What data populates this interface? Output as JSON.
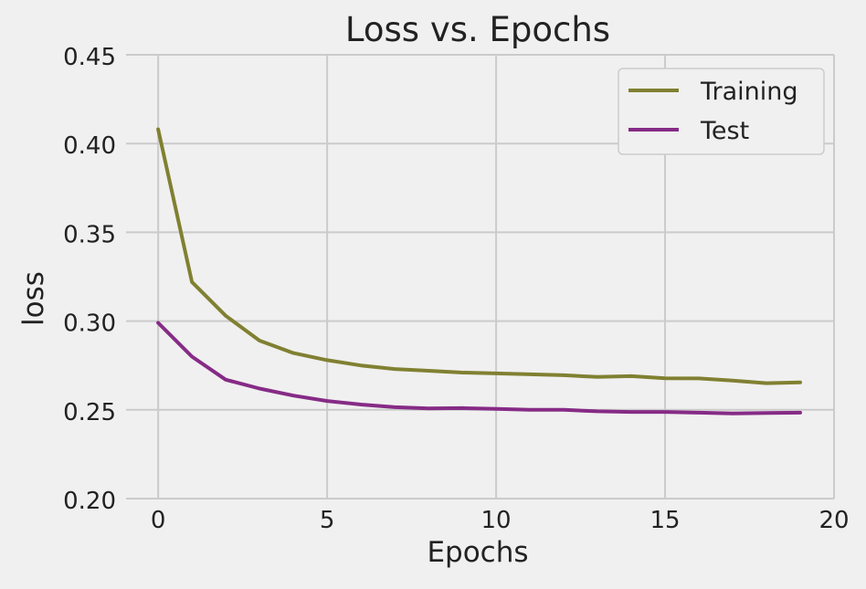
{
  "chart_data": {
    "type": "line",
    "title": "Loss vs. Epochs",
    "xlabel": "Epochs",
    "ylabel": "loss",
    "xlim": [
      -0.95,
      20
    ],
    "ylim": [
      0.2,
      0.45
    ],
    "xticks": [
      0,
      5,
      10,
      15,
      20
    ],
    "xtick_labels": [
      "0",
      "5",
      "10",
      "15",
      "20"
    ],
    "yticks": [
      0.2,
      0.25,
      0.3,
      0.35,
      0.4,
      0.45
    ],
    "ytick_labels": [
      "0.20",
      "0.25",
      "0.30",
      "0.35",
      "0.40",
      "0.45"
    ],
    "grid": true,
    "legend_position": "top-right",
    "x": [
      0,
      1,
      2,
      3,
      4,
      5,
      6,
      7,
      8,
      9,
      10,
      11,
      12,
      13,
      14,
      15,
      16,
      17,
      18,
      19
    ],
    "series": [
      {
        "name": "Training",
        "color": "#808032",
        "values": [
          0.408,
          0.322,
          0.303,
          0.289,
          0.282,
          0.278,
          0.275,
          0.273,
          0.272,
          0.271,
          0.2705,
          0.27,
          0.2695,
          0.2685,
          0.269,
          0.2678,
          0.2677,
          0.2665,
          0.265,
          0.2655
        ]
      },
      {
        "name": "Test",
        "color": "#862b86",
        "values": [
          0.299,
          0.28,
          0.267,
          0.262,
          0.258,
          0.255,
          0.253,
          0.2515,
          0.2508,
          0.251,
          0.2505,
          0.25,
          0.25,
          0.2492,
          0.2488,
          0.2488,
          0.2484,
          0.248,
          0.2482,
          0.2484
        ]
      }
    ]
  }
}
